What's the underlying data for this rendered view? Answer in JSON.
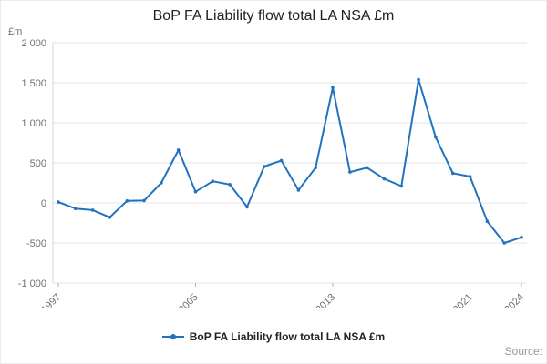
{
  "chart_data": {
    "type": "line",
    "title": "BoP FA Liability flow total LA NSA £m",
    "unit": "£m",
    "ylim": [
      -1000,
      2000
    ],
    "ytick_step": 500,
    "ytick_labels": [
      "-1 000",
      "-500",
      "0",
      "500",
      "1 000",
      "1 500",
      "2 000"
    ],
    "xticks": [
      1997,
      2005,
      2013,
      2021,
      2024
    ],
    "grid": "horizontal",
    "legend_position": "bottom",
    "source_label": "Source:",
    "series": [
      {
        "name": "BoP FA Liability flow total LA NSA £m",
        "color": "#2073bc",
        "x": [
          1997,
          1998,
          1999,
          2000,
          2001,
          2002,
          2003,
          2004,
          2005,
          2006,
          2007,
          2008,
          2009,
          2010,
          2011,
          2012,
          2013,
          2014,
          2015,
          2016,
          2017,
          2018,
          2019,
          2020,
          2021,
          2022,
          2023,
          2024
        ],
        "values": [
          10,
          -70,
          -90,
          -180,
          25,
          30,
          250,
          660,
          140,
          270,
          230,
          -50,
          455,
          530,
          160,
          440,
          1440,
          385,
          440,
          300,
          210,
          1540,
          820,
          370,
          330,
          -230,
          -500,
          -430
        ]
      }
    ]
  }
}
